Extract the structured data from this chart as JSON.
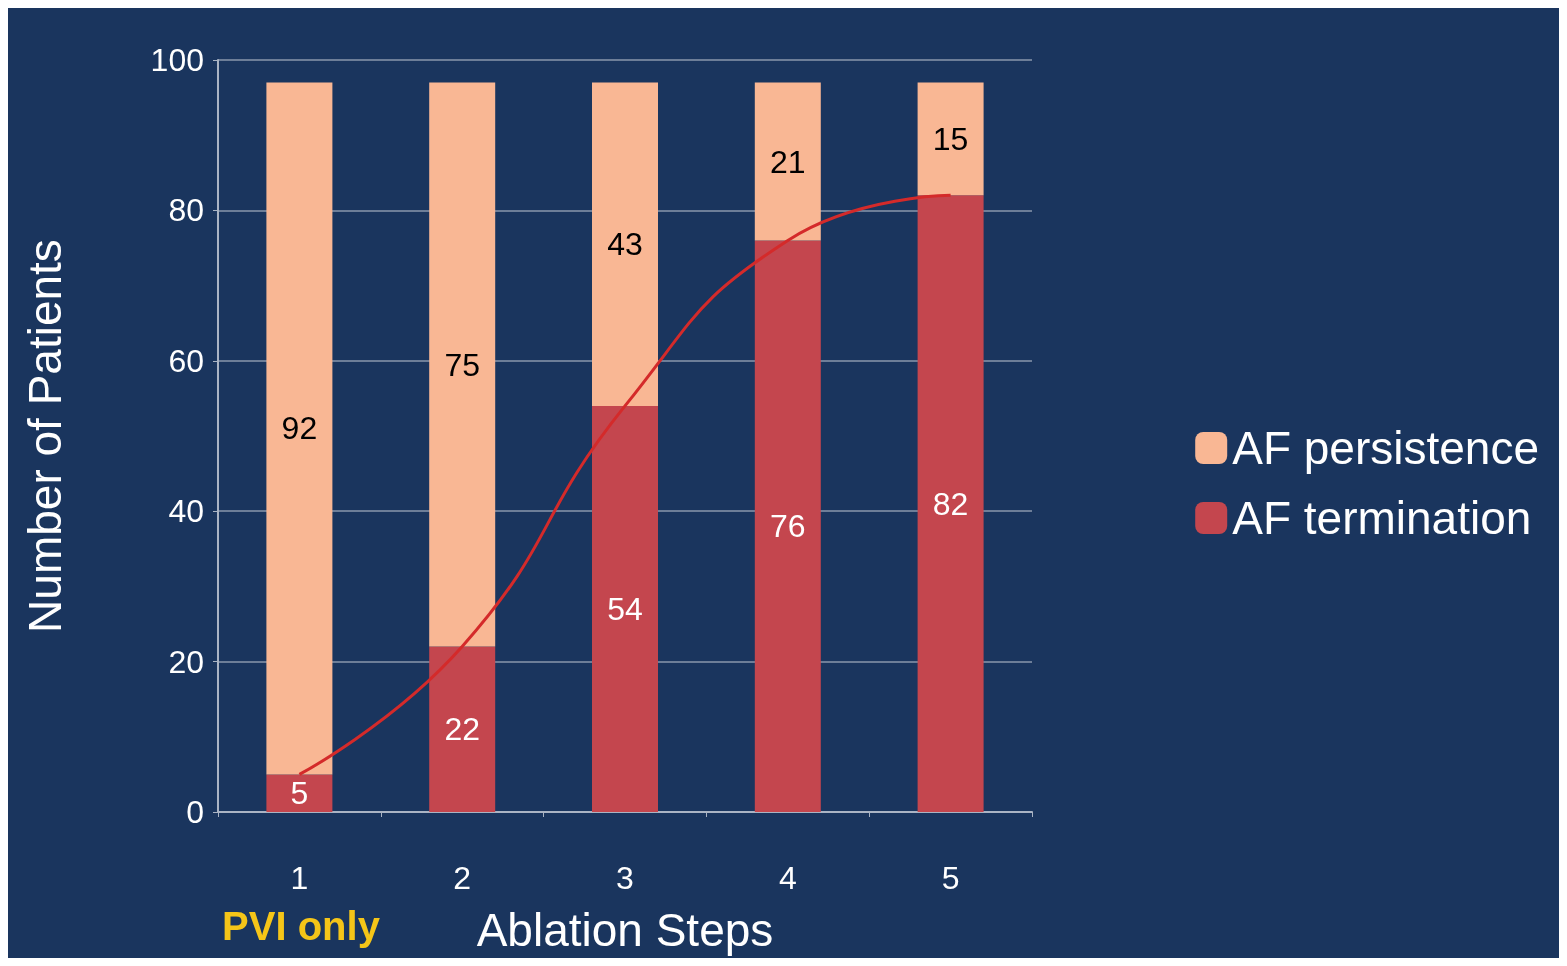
{
  "chart_data": {
    "type": "bar",
    "stacked": true,
    "xlabel": "Ablation Steps",
    "ylabel": "Number of Patients",
    "categories": [
      "1",
      "2",
      "3",
      "4",
      "5"
    ],
    "series": [
      {
        "name": "AF termination",
        "color": "#c4464e",
        "values": [
          5,
          22,
          54,
          76,
          82
        ]
      },
      {
        "name": "AF persistence",
        "color": "#f9b794",
        "values": [
          92,
          75,
          43,
          21,
          15
        ]
      },
      {
        "type": "line",
        "color": "#d42a2a",
        "x": [
          "1",
          "2",
          "3",
          "4",
          "5"
        ],
        "values": [
          5,
          22,
          54,
          76,
          82
        ],
        "value_labels": [
          null,
          null,
          null,
          null,
          null
        ]
      }
    ],
    "ylim": [
      0,
      100
    ],
    "yticks": [
      0,
      20,
      40,
      60,
      80,
      100
    ],
    "grid": "y",
    "legend": "right",
    "data_labels": true,
    "marker": "none",
    "annotations": [
      "PVI only"
    ]
  }
}
